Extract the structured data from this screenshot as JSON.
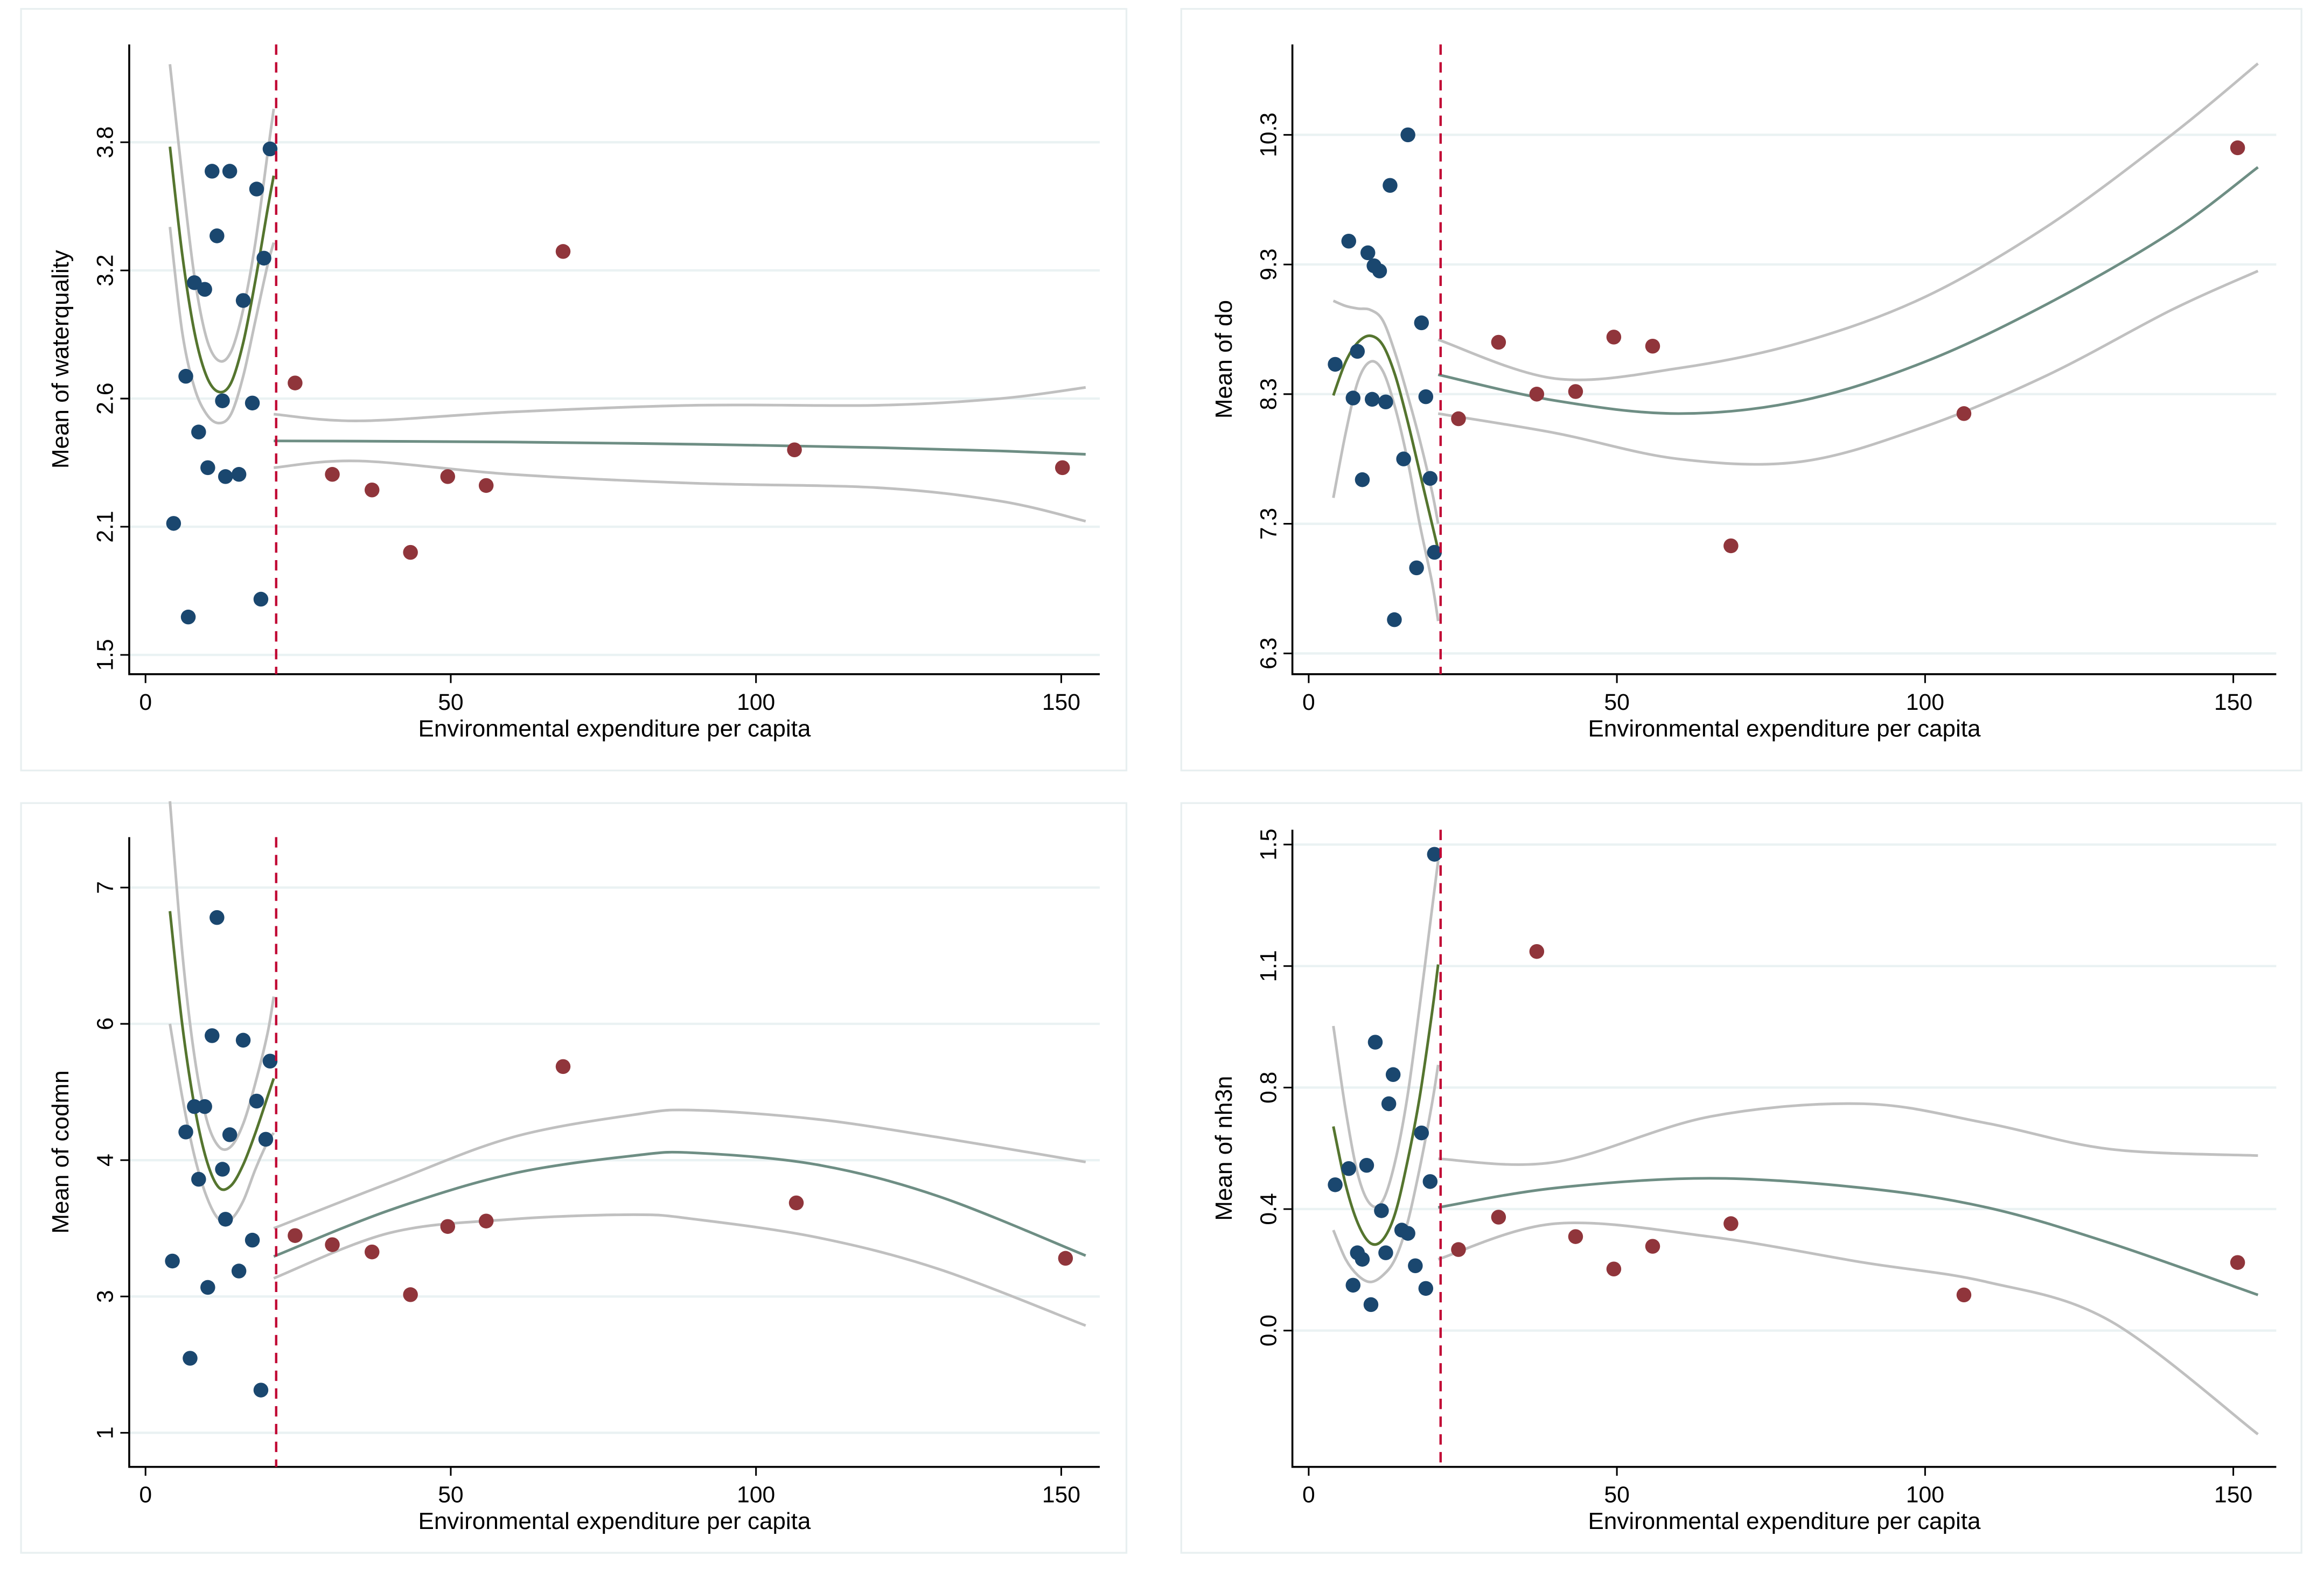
{
  "colors": {
    "below_threshold_points": "#1a476f",
    "above_threshold_points": "#90353b",
    "fit_below": "#55752f",
    "fit_above": "#6e8e84",
    "ci": "#c0c0c0",
    "threshold": "#c10534"
  },
  "chart_data": [
    {
      "type": "scatter",
      "title": "",
      "xlabel": "Environmental expenditure per capita",
      "ylabel": "Mean of waterquality",
      "xticks": [
        0,
        50,
        100,
        150
      ],
      "xtick_labels": [
        "0",
        "50",
        "100",
        "150"
      ],
      "yticks": [
        1.5,
        2.075,
        2.65,
        3.225,
        3.8
      ],
      "ytick_labels": [
        "1.5",
        "2.1",
        "2.6",
        "3.2",
        "3.8"
      ],
      "grid": true,
      "threshold_x": 21.4,
      "series": [
        {
          "name": "below threshold",
          "x": [
            4.6,
            6.6,
            7.0,
            8.0,
            8.7,
            9.7,
            10.2,
            10.9,
            11.7,
            12.6,
            13.1,
            13.8,
            15.3,
            16.0,
            17.5,
            18.2,
            18.9,
            19.4,
            20.4
          ],
          "y": [
            2.09,
            2.75,
            1.67,
            3.17,
            2.5,
            3.14,
            2.34,
            3.67,
            3.38,
            2.64,
            2.3,
            3.67,
            2.31,
            3.09,
            2.63,
            3.59,
            1.75,
            3.28,
            3.77
          ]
        },
        {
          "name": "above threshold",
          "x": [
            24.5,
            30.6,
            37.1,
            43.4,
            49.5,
            55.8,
            68.4,
            106.3,
            150.2
          ],
          "y": [
            2.72,
            2.31,
            2.24,
            1.96,
            2.3,
            2.26,
            3.31,
            2.42,
            2.34
          ]
        }
      ],
      "fits": [
        {
          "segment": "below",
          "x": [
            4,
            6,
            8,
            10,
            12,
            14,
            16,
            18,
            20,
            21
          ],
          "fit": [
            3.78,
            3.3,
            2.95,
            2.75,
            2.68,
            2.72,
            2.9,
            3.18,
            3.5,
            3.65
          ],
          "upper": [
            4.15,
            3.65,
            3.2,
            2.92,
            2.82,
            2.86,
            3.05,
            3.35,
            3.75,
            3.95
          ],
          "lower": [
            3.42,
            2.95,
            2.7,
            2.58,
            2.54,
            2.58,
            2.75,
            3.0,
            3.25,
            3.35
          ]
        },
        {
          "segment": "above",
          "x": [
            21,
            35,
            60,
            90,
            120,
            140,
            154
          ],
          "fit": [
            2.46,
            2.459,
            2.455,
            2.445,
            2.43,
            2.415,
            2.4
          ],
          "upper": [
            2.58,
            2.55,
            2.59,
            2.62,
            2.62,
            2.65,
            2.7
          ],
          "lower": [
            2.34,
            2.37,
            2.31,
            2.27,
            2.25,
            2.19,
            2.1
          ]
        }
      ]
    },
    {
      "type": "scatter",
      "title": "",
      "xlabel": "Environmental expenditure per capita",
      "ylabel": "Mean of do",
      "xticks": [
        0,
        50,
        100,
        150
      ],
      "xtick_labels": [
        "0",
        "50",
        "100",
        "150"
      ],
      "yticks": [
        6.3,
        7.3,
        8.3,
        9.3,
        10.3
      ],
      "ytick_labels": [
        "6.3",
        "7.3",
        "8.3",
        "9.3",
        "10.3"
      ],
      "grid": true,
      "threshold_x": 21.4,
      "series": [
        {
          "name": "below threshold",
          "x": [
            4.3,
            6.5,
            7.2,
            7.9,
            8.7,
            9.6,
            10.3,
            10.6,
            11.5,
            12.5,
            13.2,
            13.9,
            15.4,
            16.1,
            17.5,
            18.3,
            19.0,
            19.7,
            20.4
          ],
          "y": [
            8.53,
            9.48,
            8.27,
            8.63,
            7.64,
            9.39,
            8.26,
            9.29,
            9.25,
            8.24,
            9.91,
            6.56,
            7.8,
            10.3,
            6.96,
            8.85,
            8.28,
            7.65,
            7.08
          ]
        },
        {
          "name": "above threshold",
          "x": [
            24.3,
            30.8,
            37.0,
            43.3,
            49.5,
            55.8,
            68.5,
            106.3,
            150.7
          ],
          "y": [
            8.11,
            8.7,
            8.3,
            8.32,
            8.74,
            8.67,
            7.13,
            8.15,
            10.2
          ]
        }
      ],
      "fits": [
        {
          "segment": "below",
          "x": [
            4,
            6,
            8,
            10,
            12,
            14,
            16,
            18,
            20,
            21
          ],
          "fit": [
            8.29,
            8.55,
            8.7,
            8.75,
            8.68,
            8.45,
            8.1,
            7.7,
            7.3,
            7.1
          ],
          "upper": [
            9.02,
            8.98,
            8.96,
            8.95,
            8.87,
            8.62,
            8.3,
            7.95,
            7.55,
            7.3
          ],
          "lower": [
            7.5,
            8.0,
            8.4,
            8.55,
            8.48,
            8.2,
            7.8,
            7.3,
            6.85,
            6.55
          ]
        },
        {
          "segment": "above",
          "x": [
            21,
            40,
            60,
            80,
            100,
            120,
            140,
            154
          ],
          "fit": [
            8.45,
            8.25,
            8.15,
            8.25,
            8.55,
            9.0,
            9.55,
            10.05
          ],
          "upper": [
            8.72,
            8.42,
            8.5,
            8.7,
            9.05,
            9.6,
            10.3,
            10.85
          ],
          "lower": [
            8.15,
            8.0,
            7.8,
            7.78,
            8.05,
            8.45,
            8.95,
            9.25
          ]
        }
      ]
    },
    {
      "type": "scatter",
      "title": "",
      "xlabel": "Environmental expenditure per capita",
      "ylabel": "Mean of codmn",
      "xticks": [
        0,
        50,
        100,
        150
      ],
      "xtick_labels": [
        "0",
        "50",
        "100",
        "150"
      ],
      "yticks": [
        1,
        2.5,
        4,
        5.5,
        7
      ],
      "ytick_labels": [
        "1",
        "3",
        "4",
        "6",
        "7"
      ],
      "grid": true,
      "threshold_x": 21.4,
      "series": [
        {
          "name": "below threshold",
          "x": [
            4.4,
            6.6,
            7.3,
            8.0,
            8.7,
            9.7,
            10.2,
            10.9,
            11.7,
            12.6,
            13.1,
            13.8,
            15.3,
            16.0,
            17.5,
            18.2,
            18.9,
            19.7,
            20.4
          ],
          "y": [
            2.89,
            4.31,
            1.82,
            4.59,
            3.79,
            4.59,
            2.6,
            5.37,
            6.67,
            3.9,
            3.35,
            4.28,
            2.78,
            5.32,
            3.12,
            4.65,
            1.47,
            4.23,
            5.09
          ]
        },
        {
          "name": "above threshold",
          "x": [
            24.5,
            30.6,
            37.1,
            43.4,
            49.5,
            55.8,
            68.4,
            106.6,
            150.7
          ],
          "y": [
            3.17,
            3.07,
            2.99,
            2.52,
            3.27,
            3.33,
            5.03,
            3.53,
            2.92
          ]
        }
      ],
      "fits": [
        {
          "segment": "below",
          "x": [
            4,
            6,
            8,
            10,
            12,
            14,
            16,
            18,
            20,
            21
          ],
          "fit": [
            6.74,
            5.5,
            4.6,
            4.0,
            3.7,
            3.72,
            3.95,
            4.3,
            4.7,
            4.9
          ],
          "upper": [
            7.95,
            6.3,
            5.15,
            4.45,
            4.15,
            4.15,
            4.4,
            4.85,
            5.4,
            5.8
          ],
          "lower": [
            5.5,
            4.7,
            4.05,
            3.6,
            3.35,
            3.35,
            3.55,
            3.9,
            4.2,
            4.3
          ]
        },
        {
          "segment": "above",
          "x": [
            21,
            40,
            60,
            80,
            90,
            110,
            130,
            154
          ],
          "fit": [
            2.94,
            3.45,
            3.85,
            4.05,
            4.08,
            3.95,
            3.6,
            2.95
          ],
          "upper": [
            3.25,
            3.75,
            4.25,
            4.5,
            4.55,
            4.45,
            4.25,
            3.98
          ],
          "lower": [
            2.7,
            3.2,
            3.35,
            3.4,
            3.35,
            3.15,
            2.8,
            2.18
          ]
        }
      ]
    },
    {
      "type": "scatter",
      "title": "",
      "xlabel": "Environmental expenditure per capita",
      "ylabel": "Mean of nh3n",
      "xticks": [
        0,
        50,
        100,
        150
      ],
      "xtick_labels": [
        "0",
        "50",
        "100",
        "150"
      ],
      "yticks": [
        0,
        0.375,
        0.75,
        1.125,
        1.5
      ],
      "ytick_labels": [
        "0.0",
        "0.4",
        "0.8",
        "1.1",
        "1.5"
      ],
      "grid": true,
      "threshold_x": 21.4,
      "series": [
        {
          "name": "below threshold",
          "x": [
            4.3,
            6.5,
            7.2,
            7.9,
            8.7,
            9.4,
            10.1,
            10.8,
            11.8,
            12.5,
            13.0,
            13.7,
            15.1,
            16.1,
            17.3,
            18.3,
            19.0,
            19.7,
            20.4
          ],
          "y": [
            0.45,
            0.5,
            0.14,
            0.24,
            0.22,
            0.51,
            0.08,
            0.89,
            0.37,
            0.24,
            0.7,
            0.79,
            0.31,
            0.3,
            0.2,
            0.61,
            0.13,
            0.46,
            1.47
          ]
        },
        {
          "name": "above threshold",
          "x": [
            24.3,
            30.8,
            37.0,
            43.3,
            49.5,
            55.8,
            68.5,
            106.3,
            150.7
          ],
          "y": [
            0.25,
            0.35,
            1.17,
            0.29,
            0.19,
            0.26,
            0.33,
            0.11,
            0.21
          ]
        }
      ],
      "fits": [
        {
          "segment": "below",
          "x": [
            4,
            6,
            8,
            10,
            12,
            14,
            16,
            18,
            20,
            21
          ],
          "fit": [
            0.63,
            0.45,
            0.33,
            0.27,
            0.28,
            0.36,
            0.52,
            0.72,
            0.98,
            1.13
          ],
          "upper": [
            0.94,
            0.68,
            0.48,
            0.39,
            0.4,
            0.52,
            0.72,
            1.0,
            1.3,
            1.45
          ],
          "lower": [
            0.31,
            0.22,
            0.17,
            0.15,
            0.17,
            0.22,
            0.33,
            0.5,
            0.7,
            0.82
          ]
        },
        {
          "segment": "above",
          "x": [
            21,
            40,
            65,
            90,
            110,
            130,
            154
          ],
          "fit": [
            0.38,
            0.44,
            0.47,
            0.44,
            0.38,
            0.27,
            0.11
          ],
          "upper": [
            0.53,
            0.52,
            0.66,
            0.7,
            0.64,
            0.56,
            0.54
          ],
          "lower": [
            0.22,
            0.33,
            0.29,
            0.21,
            0.15,
            0.03,
            -0.32
          ]
        }
      ]
    }
  ]
}
